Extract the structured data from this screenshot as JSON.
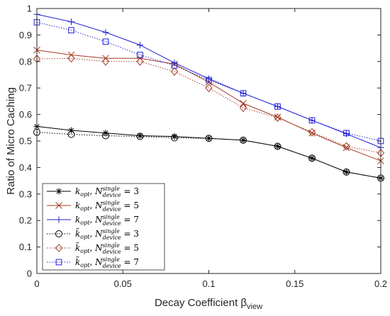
{
  "chart_data": {
    "type": "line",
    "xlabel": "Decay Coefficient β",
    "xlabel_subscript": "view",
    "ylabel": "Ratio of Micro Caching",
    "xlim": [
      0,
      0.2
    ],
    "ylim": [
      0,
      1
    ],
    "x_ticks": [
      0,
      0.05,
      0.1,
      0.15,
      0.2
    ],
    "x_tick_labels": [
      "0",
      "0.05",
      "0.1",
      "0.15",
      "0.2"
    ],
    "y_ticks": [
      0,
      0.1,
      0.2,
      0.3,
      0.4,
      0.5,
      0.6,
      0.7,
      0.8,
      0.9,
      1
    ],
    "y_tick_labels": [
      "0",
      "0.1",
      "0.2",
      "0.3",
      "0.4",
      "0.5",
      "0.6",
      "0.7",
      "0.8",
      "0.9",
      "1"
    ],
    "grid": false,
    "legend_position": "bottom-left",
    "x": [
      0,
      0.02,
      0.04,
      0.06,
      0.08,
      0.1,
      0.12,
      0.14,
      0.16,
      0.18,
      0.2
    ],
    "series": [
      {
        "name": "k_opt, N^single_device = 3",
        "legend": {
          "k": "k",
          "ksub": "opt",
          "tilde": false,
          "sup": "single",
          "sub": "device",
          "eq": " = 3"
        },
        "color": "#000000",
        "marker": "asterisk",
        "dash": "solid",
        "values": [
          0.555,
          0.54,
          0.53,
          0.52,
          0.517,
          0.51,
          0.503,
          0.48,
          0.435,
          0.383,
          0.36
        ]
      },
      {
        "name": "k_opt, N^single_device = 5",
        "legend": {
          "k": "k",
          "ksub": "opt",
          "tilde": false,
          "sup": "single",
          "sub": "device",
          "eq": " = 5"
        },
        "color": "#a23a22",
        "marker": "x",
        "dash": "solid",
        "values": [
          0.843,
          0.825,
          0.812,
          0.812,
          0.79,
          0.722,
          0.642,
          0.59,
          0.53,
          0.475,
          0.425
        ]
      },
      {
        "name": "k_opt, N^single_device = 7",
        "legend": {
          "k": "k",
          "ksub": "opt",
          "tilde": false,
          "sup": "single",
          "sub": "device",
          "eq": " = 7"
        },
        "color": "#1f1fd6",
        "marker": "plus",
        "dash": "solid",
        "values": [
          0.978,
          0.95,
          0.91,
          0.862,
          0.795,
          0.735,
          0.68,
          0.63,
          0.578,
          0.527,
          0.475
        ]
      },
      {
        "name": "k̃_opt, N^single_device = 3",
        "legend": {
          "k": "k",
          "ksub": "opt",
          "tilde": true,
          "sup": "single",
          "sub": "device",
          "eq": " = 3"
        },
        "color": "#000000",
        "marker": "circle",
        "dash": "dotted",
        "values": [
          0.533,
          0.525,
          0.52,
          0.517,
          0.512,
          0.51,
          0.503,
          0.48,
          0.435,
          0.383,
          0.36
        ]
      },
      {
        "name": "k̃_opt, N^single_device = 5",
        "legend": {
          "k": "k",
          "ksub": "opt",
          "tilde": true,
          "sup": "single",
          "sub": "device",
          "eq": " = 5"
        },
        "color": "#a23a22",
        "marker": "diamond",
        "dash": "dotted",
        "values": [
          0.81,
          0.812,
          0.8,
          0.8,
          0.762,
          0.7,
          0.625,
          0.588,
          0.533,
          0.48,
          0.455
        ]
      },
      {
        "name": "k̃_opt, N^single_device = 7",
        "legend": {
          "k": "k",
          "ksub": "opt",
          "tilde": true,
          "sup": "single",
          "sub": "device",
          "eq": " = 7"
        },
        "color": "#1f1fd6",
        "marker": "square",
        "dash": "dotted",
        "values": [
          0.948,
          0.918,
          0.875,
          0.825,
          0.785,
          0.73,
          0.68,
          0.63,
          0.578,
          0.53,
          0.5
        ]
      }
    ]
  }
}
